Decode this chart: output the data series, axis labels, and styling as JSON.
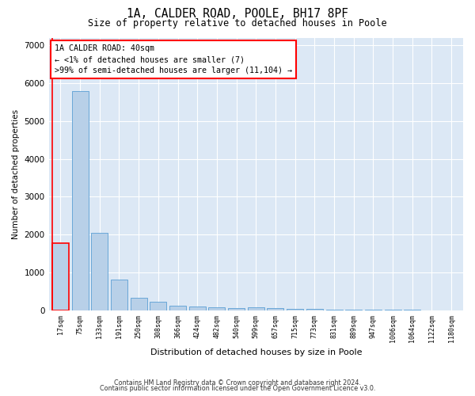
{
  "title_line1": "1A, CALDER ROAD, POOLE, BH17 8PF",
  "title_line2": "Size of property relative to detached houses in Poole",
  "xlabel": "Distribution of detached houses by size in Poole",
  "ylabel": "Number of detached properties",
  "bar_labels": [
    "17sqm",
    "75sqm",
    "133sqm",
    "191sqm",
    "250sqm",
    "308sqm",
    "366sqm",
    "424sqm",
    "482sqm",
    "540sqm",
    "599sqm",
    "657sqm",
    "715sqm",
    "773sqm",
    "831sqm",
    "889sqm",
    "947sqm",
    "1006sqm",
    "1064sqm",
    "1122sqm",
    "1180sqm"
  ],
  "bar_values": [
    1780,
    5780,
    2050,
    820,
    340,
    220,
    130,
    100,
    70,
    60,
    80,
    50,
    40,
    30,
    20,
    20,
    15,
    10,
    10,
    5,
    5
  ],
  "bar_color": "#b8d0e8",
  "bar_edge_color": "#5a9fd4",
  "highlight_bar_index": 0,
  "highlight_edge_color": "red",
  "annotation_box_text": "1A CALDER ROAD: 40sqm\n← <1% of detached houses are smaller (7)\n>99% of semi-detached houses are larger (11,104) →",
  "ylim": [
    0,
    7200
  ],
  "yticks": [
    0,
    1000,
    2000,
    3000,
    4000,
    5000,
    6000,
    7000
  ],
  "plot_bg_color": "#dce8f5",
  "grid_color": "#ffffff",
  "footer_line1": "Contains HM Land Registry data © Crown copyright and database right 2024.",
  "footer_line2": "Contains public sector information licensed under the Open Government Licence v3.0."
}
